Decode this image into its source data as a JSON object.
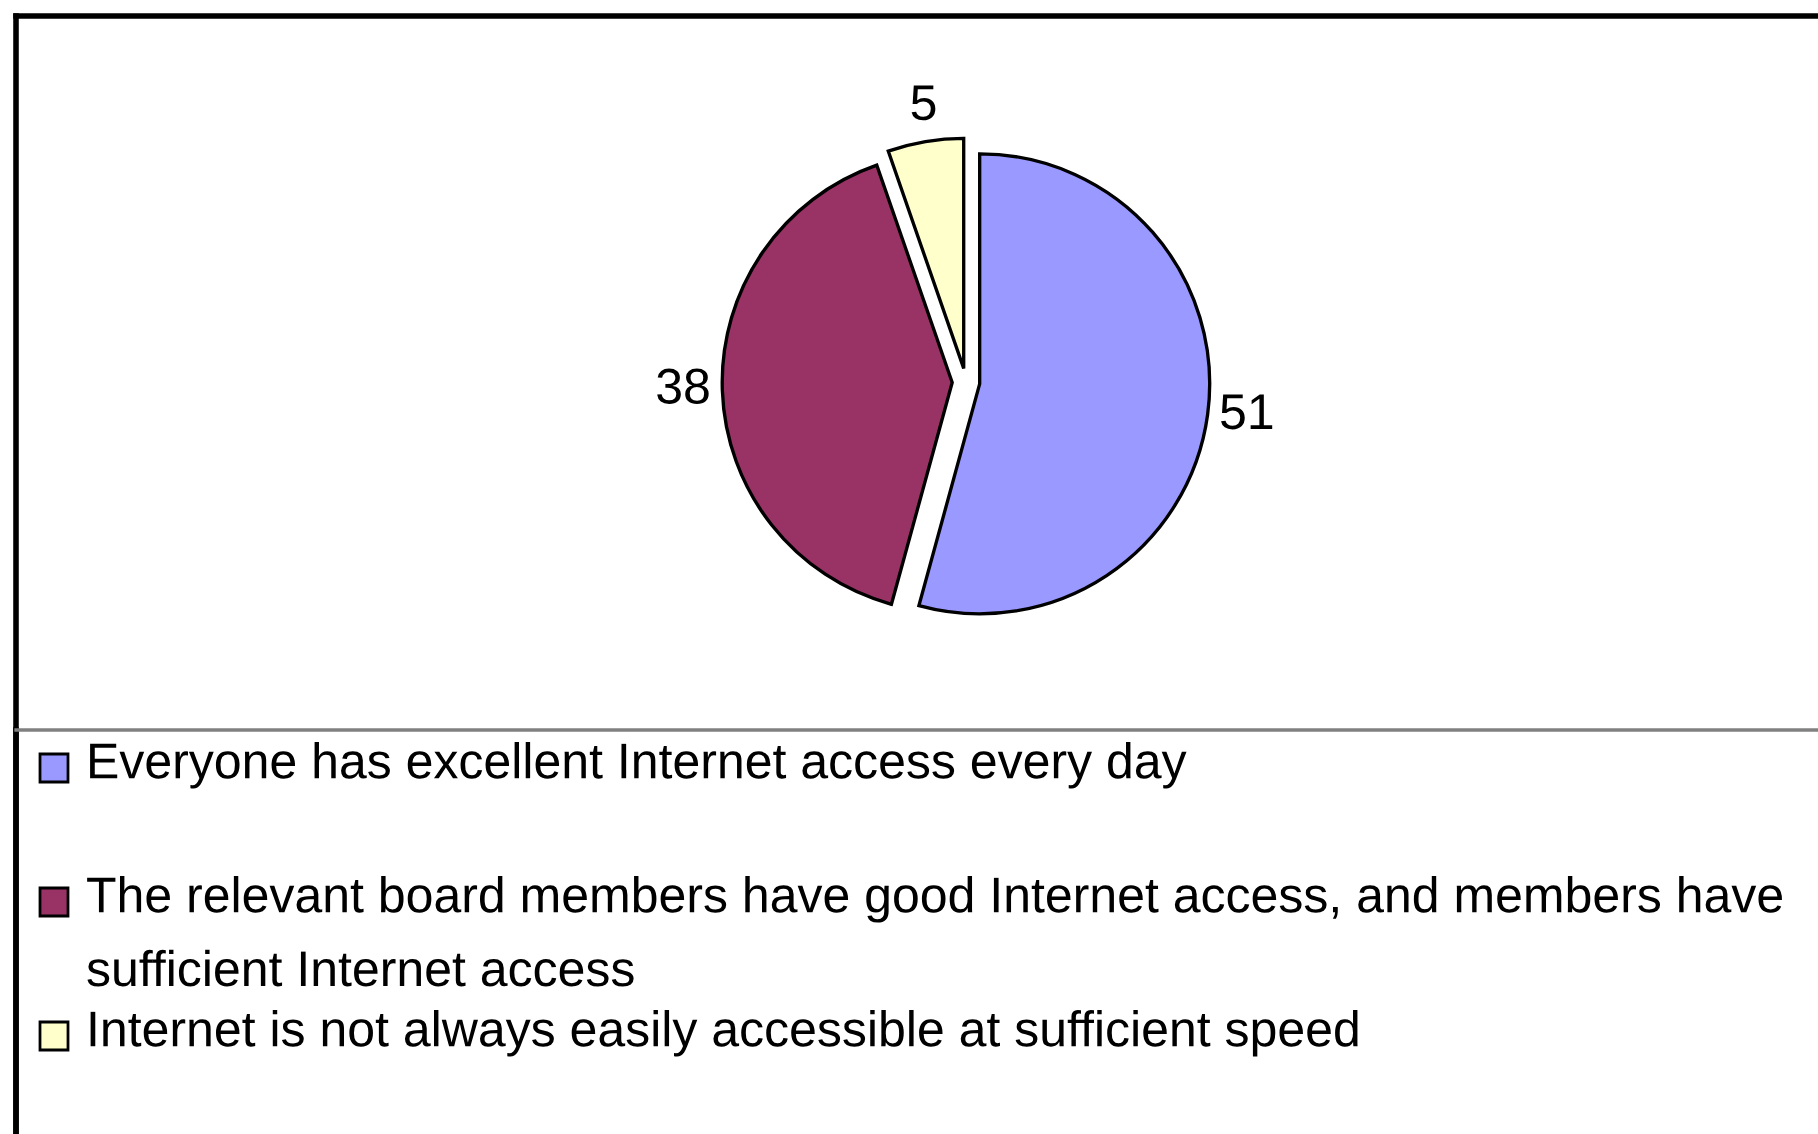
{
  "chart_data": {
    "type": "pie",
    "categories": [
      "Everyone has excellent Internet access every day",
      "The relevant board members have good Internet access, and members have sufficient Internet access",
      "Internet is not always easily accessible at sufficient speed"
    ],
    "values": [
      51,
      38,
      5
    ],
    "colors": [
      "#9999ff",
      "#993366",
      "#ffffcc"
    ],
    "data_labels": true,
    "legend": "bottom"
  }
}
